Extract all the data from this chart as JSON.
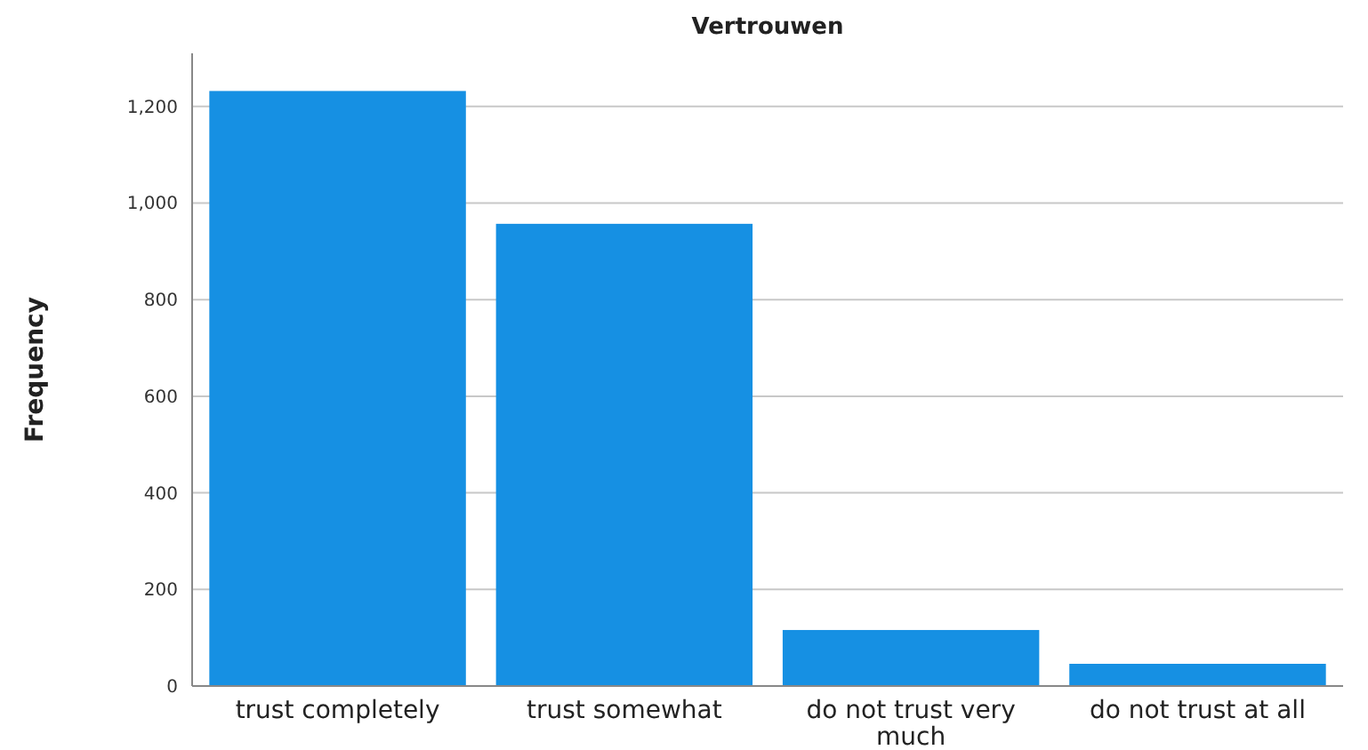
{
  "chart_data": {
    "type": "bar",
    "title": "Vertrouwen",
    "ylabel": "Frequency",
    "categories": [
      "trust completely",
      "trust somewhat",
      "do not trust very much",
      "do not trust at all"
    ],
    "values": [
      1232,
      957,
      116,
      46
    ],
    "color": "#1690e3",
    "ylim": [
      0,
      1310
    ],
    "yticks": [
      {
        "value": 0,
        "label": "0"
      },
      {
        "value": 200,
        "label": "200"
      },
      {
        "value": 400,
        "label": "400"
      },
      {
        "value": 600,
        "label": "600"
      },
      {
        "value": 800,
        "label": "800"
      },
      {
        "value": 1000,
        "label": "1,000"
      },
      {
        "value": 1200,
        "label": "1,200"
      }
    ],
    "grid": "y"
  }
}
